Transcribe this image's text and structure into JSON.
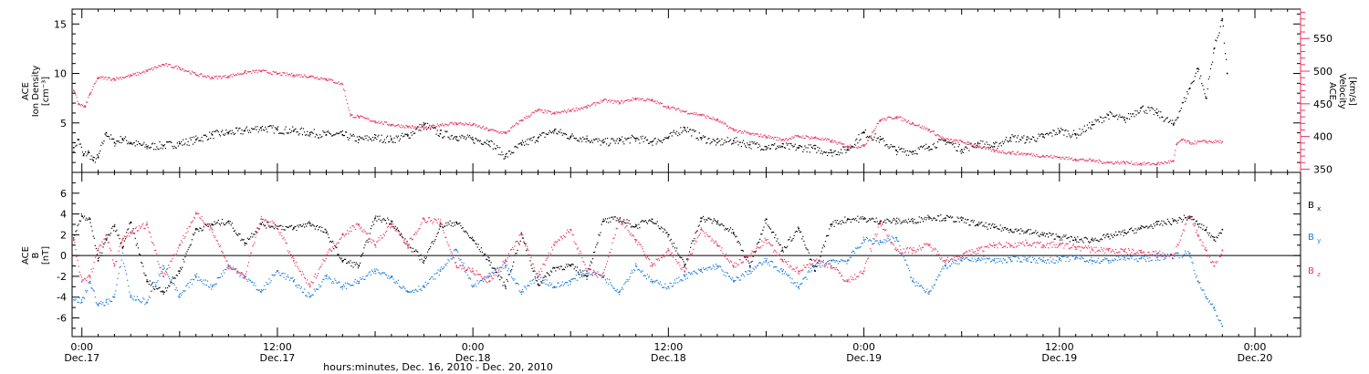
{
  "chart_data": [
    {
      "type": "scatter",
      "panel": "top",
      "title": "",
      "ylabel_left": [
        "ACE",
        "Ion Density",
        "[cm⁻³]"
      ],
      "ylabel_right": [
        "ACE",
        "Velocity",
        "[km/s]"
      ],
      "ylim_left": [
        0,
        16.5
      ],
      "ylim_right": [
        345,
        595
      ],
      "yticks_left": [
        5,
        10,
        15
      ],
      "yticks_right": [
        350,
        400,
        450,
        500,
        550
      ],
      "colors": {
        "density": "#000000",
        "velocity": "#e8345e"
      },
      "series": [
        {
          "key": "density",
          "color": "#000000",
          "axis": "left",
          "x": [
            -0.5,
            -0.2,
            0.1,
            0.4,
            0.7,
            1.0,
            1.5,
            2,
            2.5,
            3,
            4,
            5,
            6,
            7,
            8,
            9,
            10,
            11,
            12,
            13,
            14,
            15,
            16,
            17,
            18,
            19,
            20,
            21,
            22,
            23,
            24,
            25,
            26,
            27,
            28,
            29,
            30,
            31,
            32,
            33,
            34,
            35,
            36,
            37,
            38,
            39,
            40,
            41,
            42,
            43,
            44,
            45,
            46,
            47,
            48,
            49,
            50,
            51,
            52,
            53,
            54,
            55,
            56,
            57,
            58,
            59,
            60,
            61,
            62,
            63,
            64,
            65,
            66,
            67,
            68,
            68.5,
            69,
            69.5,
            70,
            70.3
          ],
          "y": [
            2.5,
            3.3,
            1.7,
            2.0,
            1.2,
            1.5,
            4.0,
            3.0,
            3.4,
            3.0,
            2.6,
            2.7,
            2.9,
            3.3,
            3.8,
            4.0,
            4.2,
            4.5,
            4.3,
            4.2,
            4.0,
            3.8,
            3.8,
            3.3,
            3.5,
            3.3,
            3.7,
            4.8,
            3.9,
            3.6,
            3.3,
            3.1,
            1.6,
            2.8,
            3.5,
            4.2,
            3.6,
            3.4,
            3.0,
            3.2,
            3.4,
            3.1,
            3.5,
            4.5,
            3.5,
            3.0,
            3.2,
            2.8,
            2.6,
            2.6,
            2.5,
            2.4,
            2.0,
            2.3,
            4.0,
            3.3,
            2.2,
            2.1,
            2.6,
            3.2,
            2.3,
            2.9,
            2.6,
            3.5,
            3.3,
            3.6,
            4.2,
            3.8,
            4.8,
            5.8,
            5.3,
            6.5,
            6.0,
            4.8,
            8.5,
            10.5,
            7.5,
            12.5,
            15.5,
            10.0
          ]
        },
        {
          "key": "velocity",
          "color": "#e8345e",
          "axis": "right",
          "x": [
            -0.5,
            -0.2,
            0.2,
            0.5,
            1,
            2,
            3,
            4,
            5,
            6,
            7,
            8,
            9,
            10,
            11,
            12,
            13,
            14,
            15,
            16,
            16.5,
            17,
            18,
            19,
            20,
            21,
            22,
            23,
            24,
            25,
            26,
            27,
            28,
            29,
            30,
            31,
            32,
            33,
            34,
            35,
            36,
            37,
            38,
            39,
            40,
            41,
            42,
            43,
            44,
            45,
            46,
            47,
            48,
            49,
            50,
            51,
            52,
            53,
            54,
            55,
            56,
            57,
            58,
            59,
            60,
            61,
            62,
            63,
            64,
            65,
            66,
            67,
            67.2,
            67.5,
            68,
            69,
            70
          ],
          "y": [
            470,
            450,
            445,
            465,
            490,
            488,
            493,
            500,
            510,
            505,
            495,
            490,
            492,
            498,
            500,
            496,
            494,
            492,
            488,
            480,
            432,
            430,
            423,
            418,
            415,
            412,
            418,
            420,
            418,
            410,
            405,
            425,
            440,
            435,
            440,
            445,
            455,
            452,
            458,
            455,
            445,
            438,
            433,
            425,
            410,
            404,
            400,
            395,
            400,
            398,
            393,
            385,
            385,
            425,
            430,
            420,
            410,
            395,
            392,
            385,
            378,
            375,
            373,
            370,
            368,
            365,
            363,
            360,
            360,
            358,
            358,
            362,
            388,
            395,
            390,
            392,
            392
          ]
        }
      ]
    },
    {
      "type": "scatter",
      "panel": "bottom",
      "title": "",
      "ylabel_left": [
        "ACE",
        "B",
        "[nT]"
      ],
      "ylim": [
        -7.8,
        8
      ],
      "yticks": [
        -6,
        -4,
        -2,
        0,
        2,
        4,
        6
      ],
      "legend": [
        "Bx",
        "By",
        "Bz"
      ],
      "legend_placement": "right",
      "colors": {
        "Bx": "#000000",
        "By": "#1a7ad8",
        "Bz": "#e8345e"
      },
      "xlabel": "hours:minutes, Dec. 16, 2010 - Dec. 20, 2010",
      "xlim": [
        -0.6,
        74.8
      ],
      "xticks": [
        {
          "x": 0,
          "time": "0:00",
          "date": "Dec.17"
        },
        {
          "x": 12,
          "time": "12:00",
          "date": "Dec.17"
        },
        {
          "x": 24,
          "time": "0:00",
          "date": "Dec.18"
        },
        {
          "x": 36,
          "time": "12:00",
          "date": "Dec.18"
        },
        {
          "x": 48,
          "time": "0:00",
          "date": "Dec.19"
        },
        {
          "x": 60,
          "time": "12:00",
          "date": "Dec.19"
        },
        {
          "x": 72,
          "time": "0:00",
          "date": "Dec.20"
        }
      ],
      "series": [
        {
          "key": "Bx",
          "color": "#000000",
          "x": [
            -0.5,
            0.0,
            0.5,
            1.0,
            1.5,
            2,
            2.5,
            3,
            4,
            5,
            6,
            7,
            8,
            9,
            10,
            11,
            12,
            13,
            14,
            15,
            16,
            17,
            18,
            19,
            20,
            21,
            22,
            23,
            24,
            25,
            26,
            27,
            28,
            29,
            30,
            31,
            32,
            33,
            34,
            35,
            36,
            37,
            38,
            39,
            40,
            41,
            42,
            43,
            44,
            45,
            46,
            47,
            48,
            49,
            50,
            51,
            52,
            53,
            54,
            55,
            56,
            57,
            58,
            59,
            60,
            61,
            62,
            63,
            64,
            65,
            66,
            67,
            68,
            68.5,
            69,
            69.5,
            70
          ],
          "y": [
            1.5,
            3.8,
            3.5,
            -0.5,
            1.5,
            2.8,
            0.8,
            3.2,
            -2.5,
            -3.5,
            -1.5,
            2.5,
            3.0,
            3.3,
            1.2,
            3.0,
            2.8,
            2.6,
            3.1,
            2.2,
            -0.5,
            -1.0,
            3.6,
            3.3,
            1.0,
            -0.5,
            2.8,
            3.2,
            1.5,
            -0.5,
            -3.0,
            2.0,
            -2.8,
            -1.2,
            -1.0,
            -2.0,
            3.3,
            3.5,
            2.8,
            3.5,
            2.0,
            -1.0,
            3.6,
            3.2,
            2.2,
            -1.0,
            3.5,
            0.5,
            2.6,
            -1.5,
            3.0,
            3.5,
            3.5,
            3.3,
            3.3,
            3.3,
            3.7,
            3.6,
            3.4,
            3.0,
            2.7,
            2.5,
            2.3,
            2.0,
            1.8,
            1.5,
            1.5,
            1.8,
            2.2,
            2.6,
            3.0,
            3.3,
            3.7,
            3.0,
            2.5,
            1.5,
            2.5
          ]
        },
        {
          "key": "By",
          "color": "#1a7ad8",
          "x": [
            -0.5,
            0.0,
            0.5,
            1.0,
            1.5,
            2,
            2.5,
            3,
            4,
            5,
            6,
            7,
            8,
            9,
            10,
            11,
            12,
            13,
            14,
            15,
            16,
            17,
            18,
            19,
            20,
            21,
            22,
            23,
            24,
            25,
            26,
            27,
            28,
            29,
            30,
            31,
            32,
            33,
            34,
            35,
            36,
            37,
            38,
            39,
            40,
            41,
            42,
            43,
            44,
            45,
            46,
            47,
            48,
            49,
            50,
            51,
            52,
            53,
            54,
            55,
            56,
            57,
            58,
            59,
            60,
            61,
            62,
            63,
            64,
            65,
            66,
            67,
            68,
            68.5,
            69,
            69.5,
            70
          ],
          "y": [
            -4.0,
            -4.5,
            -2.5,
            -4.8,
            -4.5,
            -4.0,
            0.0,
            -4.0,
            -4.5,
            -1.0,
            -4.0,
            -2.0,
            -3.0,
            -1.0,
            -2.0,
            -3.5,
            -1.5,
            -2.5,
            -4.0,
            -2.0,
            -3.0,
            -2.5,
            -1.5,
            -2.0,
            -3.5,
            -3.0,
            -1.5,
            0.5,
            -3.0,
            -2.0,
            -1.0,
            -3.5,
            -2.0,
            -3.0,
            -2.5,
            -1.5,
            -2.0,
            -3.5,
            -1.0,
            -2.5,
            -3.0,
            -2.0,
            -1.5,
            -1.0,
            -2.5,
            -1.5,
            -0.5,
            -1.5,
            -3.0,
            -1.0,
            -0.5,
            -0.5,
            1.5,
            1.3,
            1.7,
            -2.5,
            -3.5,
            -1.0,
            -0.5,
            -0.3,
            -0.5,
            -0.4,
            -0.3,
            -0.5,
            -0.4,
            -0.2,
            -0.5,
            -0.5,
            -0.2,
            -0.3,
            -0.2,
            0.0,
            0.2,
            -2.5,
            -4.0,
            -5.0,
            -6.8
          ]
        },
        {
          "key": "Bz",
          "color": "#e8345e",
          "x": [
            -0.5,
            0.0,
            0.5,
            1.0,
            1.5,
            2,
            2.5,
            3,
            4,
            5,
            6,
            7,
            8,
            9,
            10,
            11,
            12,
            13,
            14,
            15,
            16,
            17,
            18,
            19,
            20,
            21,
            22,
            23,
            24,
            25,
            26,
            27,
            28,
            29,
            30,
            31,
            32,
            33,
            34,
            35,
            36,
            37,
            38,
            39,
            40,
            41,
            42,
            43,
            44,
            45,
            46,
            47,
            48,
            49,
            50,
            51,
            52,
            53,
            54,
            55,
            56,
            57,
            58,
            59,
            60,
            61,
            62,
            63,
            64,
            65,
            66,
            67,
            68,
            68.5,
            69,
            69.5,
            70
          ],
          "y": [
            1.5,
            -2.5,
            -2.0,
            0.5,
            2.0,
            -1.0,
            1.5,
            2.2,
            3.0,
            -2.0,
            1.0,
            4.0,
            2.5,
            -1.0,
            -2.0,
            3.5,
            2.8,
            -0.5,
            -3.0,
            0.0,
            2.0,
            3.0,
            1.0,
            3.0,
            1.0,
            3.5,
            3.2,
            -1.0,
            -1.5,
            -2.5,
            -0.5,
            2.0,
            -2.0,
            1.0,
            2.5,
            -1.5,
            -2.0,
            3.5,
            1.5,
            -1.0,
            0.5,
            -1.5,
            2.5,
            1.0,
            -1.0,
            0.0,
            1.5,
            -0.5,
            -1.5,
            -0.5,
            -1.0,
            -2.5,
            -1.5,
            3.2,
            0.5,
            0.5,
            1.0,
            -0.5,
            0.0,
            0.5,
            1.0,
            1.0,
            1.2,
            1.0,
            1.0,
            0.8,
            0.6,
            0.5,
            0.4,
            0.3,
            0.2,
            0.0,
            3.8,
            2.0,
            0.5,
            -1.0,
            0.5
          ]
        }
      ]
    }
  ]
}
